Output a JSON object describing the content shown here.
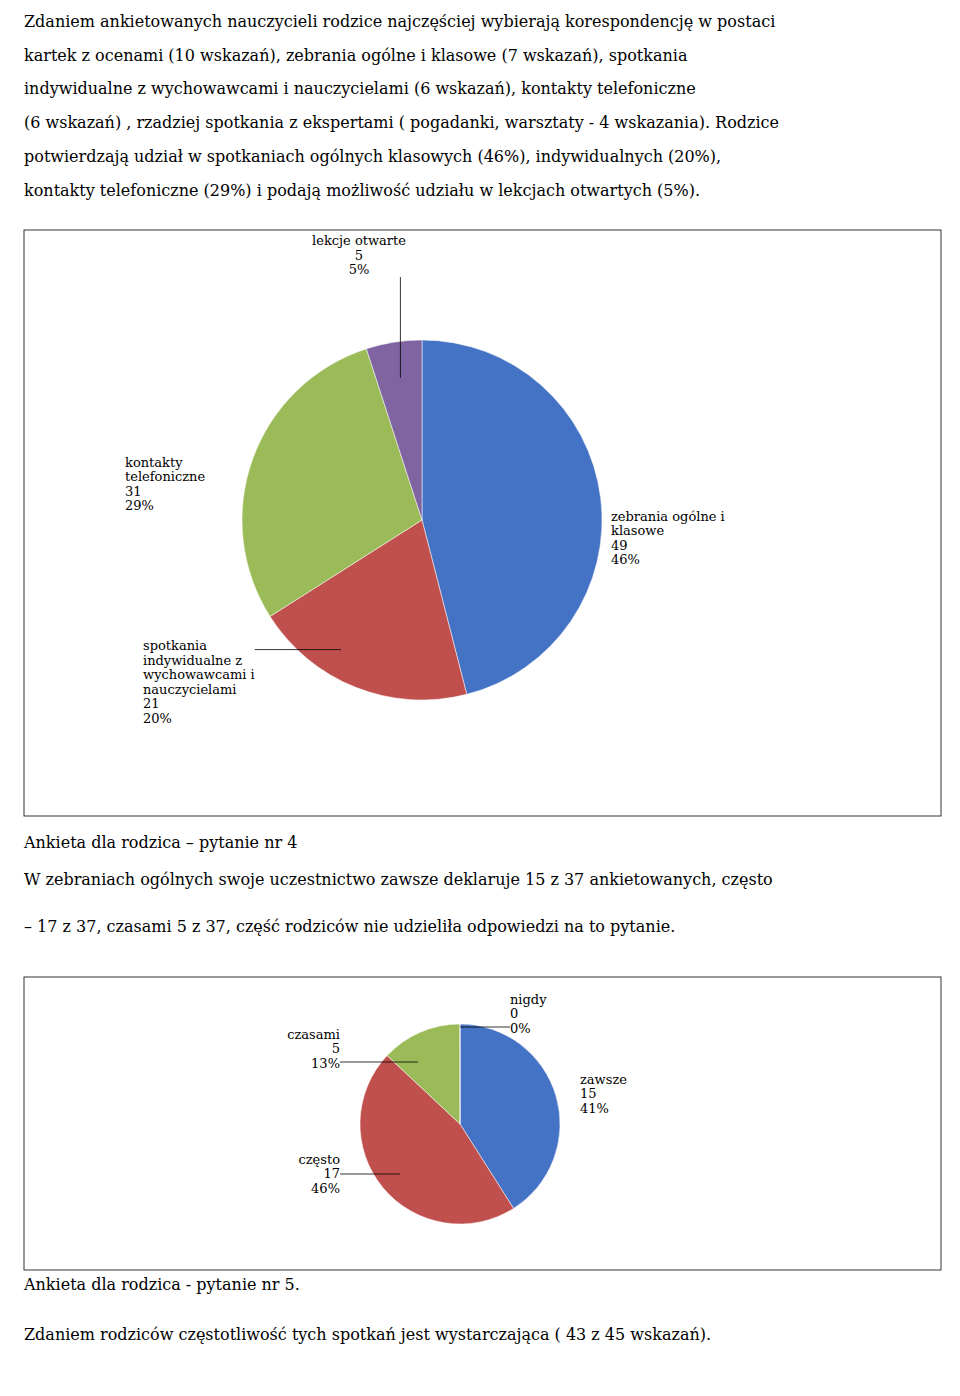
{
  "chart_data": [
    {
      "type": "pie",
      "annotations": [
        "Zdaniem ankietowanych nauczycieli rodzice najczęściej wybierają korespondencję w postaci",
        "kartek z ocenami (10 wskazań), zebrania ogólne i klasowe (7 wskazań), spotkania",
        "indywidualne z wychowawcami i nauczycielami (6 wskazań), kontakty telefoniczne",
        "(6 wskazań) , rzadziej spotkania z ekspertami ( pogadanki, warsztaty - 4 wskazania). Rodzice",
        "potwierdzają udział w spotkaniach ogólnych klasowych (46%), indywidualnych (20%),",
        "kontakty telefoniczne (29%)  i podają możliwość udziału w lekcjach otwartych (5%)."
      ],
      "title": "Ankieta dla rodzica – pytanie nr 4",
      "categories": [
        "zebrania ogólne i\nklasowe",
        "spotkania\nindywidualne z\nwychowawcami i\nnauczycielami",
        "kontakty\ntelefoniczne",
        "lekcje otwarte"
      ],
      "values": [
        46,
        20,
        29,
        5
      ],
      "value_labels": [
        "46%",
        "20%",
        "29%",
        "5%"
      ],
      "counts": [
        49,
        21,
        31,
        5
      ],
      "colors": [
        "#4472C4",
        "#C0504D",
        "#9BBB59",
        "#8064A2"
      ],
      "data_labels": true
    },
    {
      "type": "pie",
      "annotations": [
        "W zebraniach ogólnych swoje uczestnictwo zawsze deklaruje 15 z 37 ankietowanych, często",
        "– 17 z 37, czasami 5 z 37, część rodziców nie udzieliła odpowiedzi na to pytanie."
      ],
      "title": "Ankieta dla rodzica - pytanie nr 5.",
      "subtitle": "Zdaniem rodziców częstotliwość tych spotkań jest wystarczająca ( 43 z 45 wskazań).",
      "categories": [
        "zawsze",
        "często",
        "czasami",
        "nigdy"
      ],
      "values": [
        41,
        46,
        13,
        0.0001
      ],
      "value_labels": [
        "41%",
        "46%",
        "13%",
        "0%"
      ],
      "counts": [
        15,
        17,
        5,
        0
      ],
      "colors": [
        "#4472C4",
        "#C0504D",
        "#9BBB59",
        "#243F60"
      ],
      "data_labels": true
    }
  ]
}
